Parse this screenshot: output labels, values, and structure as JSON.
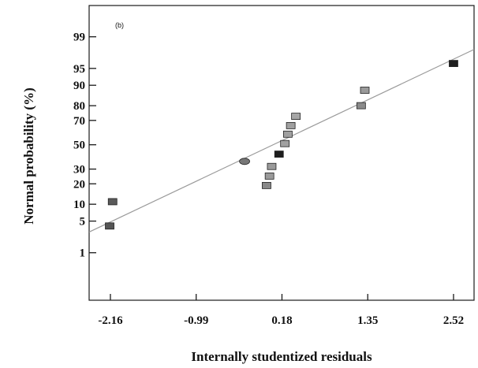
{
  "chart_data": {
    "type": "scatter",
    "title": "",
    "panel_label": "(b)",
    "xlabel": "Internally studentized residuals",
    "ylabel": "Normal probability (%)",
    "x_ticks": [
      -2.16,
      -0.99,
      0.18,
      1.35,
      2.52
    ],
    "x_tick_labels": [
      "-2.16",
      "-0.99",
      "0.18",
      "1.35",
      "2.52"
    ],
    "y_ticks": [
      1,
      5,
      10,
      20,
      30,
      50,
      70,
      80,
      90,
      95,
      99
    ],
    "y_tick_labels": [
      "1",
      "5",
      "10",
      "20",
      "30",
      "50",
      "70",
      "80",
      "90",
      "95",
      "99"
    ],
    "xlim": [
      -2.45,
      2.8
    ],
    "y_scale": "normal-probability",
    "grid": false,
    "fit_line": {
      "x": [
        -2.45,
        2.8
      ],
      "y": [
        3,
        98
      ]
    },
    "points": [
      {
        "x": -2.17,
        "y": 4,
        "color": "#555555"
      },
      {
        "x": -2.13,
        "y": 11,
        "color": "#5a5a5a"
      },
      {
        "x": -0.33,
        "y": 36,
        "color": "#777777",
        "marker": "ellipse"
      },
      {
        "x": -0.03,
        "y": 19,
        "color": "#888888"
      },
      {
        "x": 0.01,
        "y": 25,
        "color": "#9a9a9a"
      },
      {
        "x": 0.04,
        "y": 32,
        "color": "#9a9a9a"
      },
      {
        "x": 0.14,
        "y": 42,
        "color": "#1e1e1e"
      },
      {
        "x": 0.22,
        "y": 51,
        "color": "#a0a0a0"
      },
      {
        "x": 0.26,
        "y": 59,
        "color": "#a0a0a0"
      },
      {
        "x": 0.3,
        "y": 66,
        "color": "#a0a0a0"
      },
      {
        "x": 0.37,
        "y": 73,
        "color": "#a6a6a6"
      },
      {
        "x": 1.26,
        "y": 80,
        "color": "#8a8a8a"
      },
      {
        "x": 1.31,
        "y": 88,
        "color": "#9a9a9a"
      },
      {
        "x": 2.52,
        "y": 96,
        "color": "#1e1e1e"
      }
    ]
  }
}
